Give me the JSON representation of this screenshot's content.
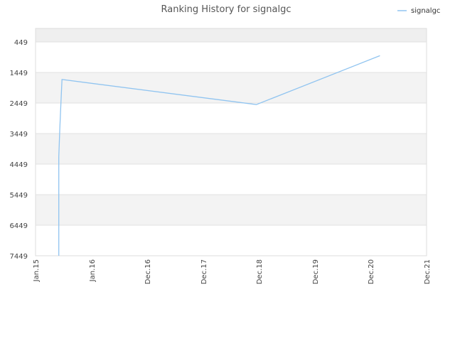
{
  "chart_data": {
    "type": "line",
    "title": "Ranking History for signalgc",
    "xlabel": "",
    "ylabel": "",
    "x_ticks": [
      "Jan.15",
      "Jan.16",
      "Dec.16",
      "Dec.17",
      "Dec.18",
      "Dec.19",
      "Dec.20",
      "Dec.21"
    ],
    "y_ticks": [
      "449",
      "1449",
      "2449",
      "3449",
      "4449",
      "5449",
      "6449",
      "7449"
    ],
    "ylim": [
      7449,
      0
    ],
    "y_inverted": true,
    "grid": true,
    "legend_position": "top-right",
    "line_color": "#90c4f0",
    "series": [
      {
        "name": "signalgc",
        "points": [
          {
            "x": "2015-06-01",
            "y": 7449
          },
          {
            "x": "2015-06-01",
            "y": 4200
          },
          {
            "x": "2015-06-08",
            "y": 3250
          },
          {
            "x": "2015-06-15",
            "y": 2449
          },
          {
            "x": "2015-06-22",
            "y": 1680
          },
          {
            "x": "2018-11-15",
            "y": 2500
          },
          {
            "x": "2021-02-01",
            "y": 900
          }
        ]
      }
    ]
  }
}
